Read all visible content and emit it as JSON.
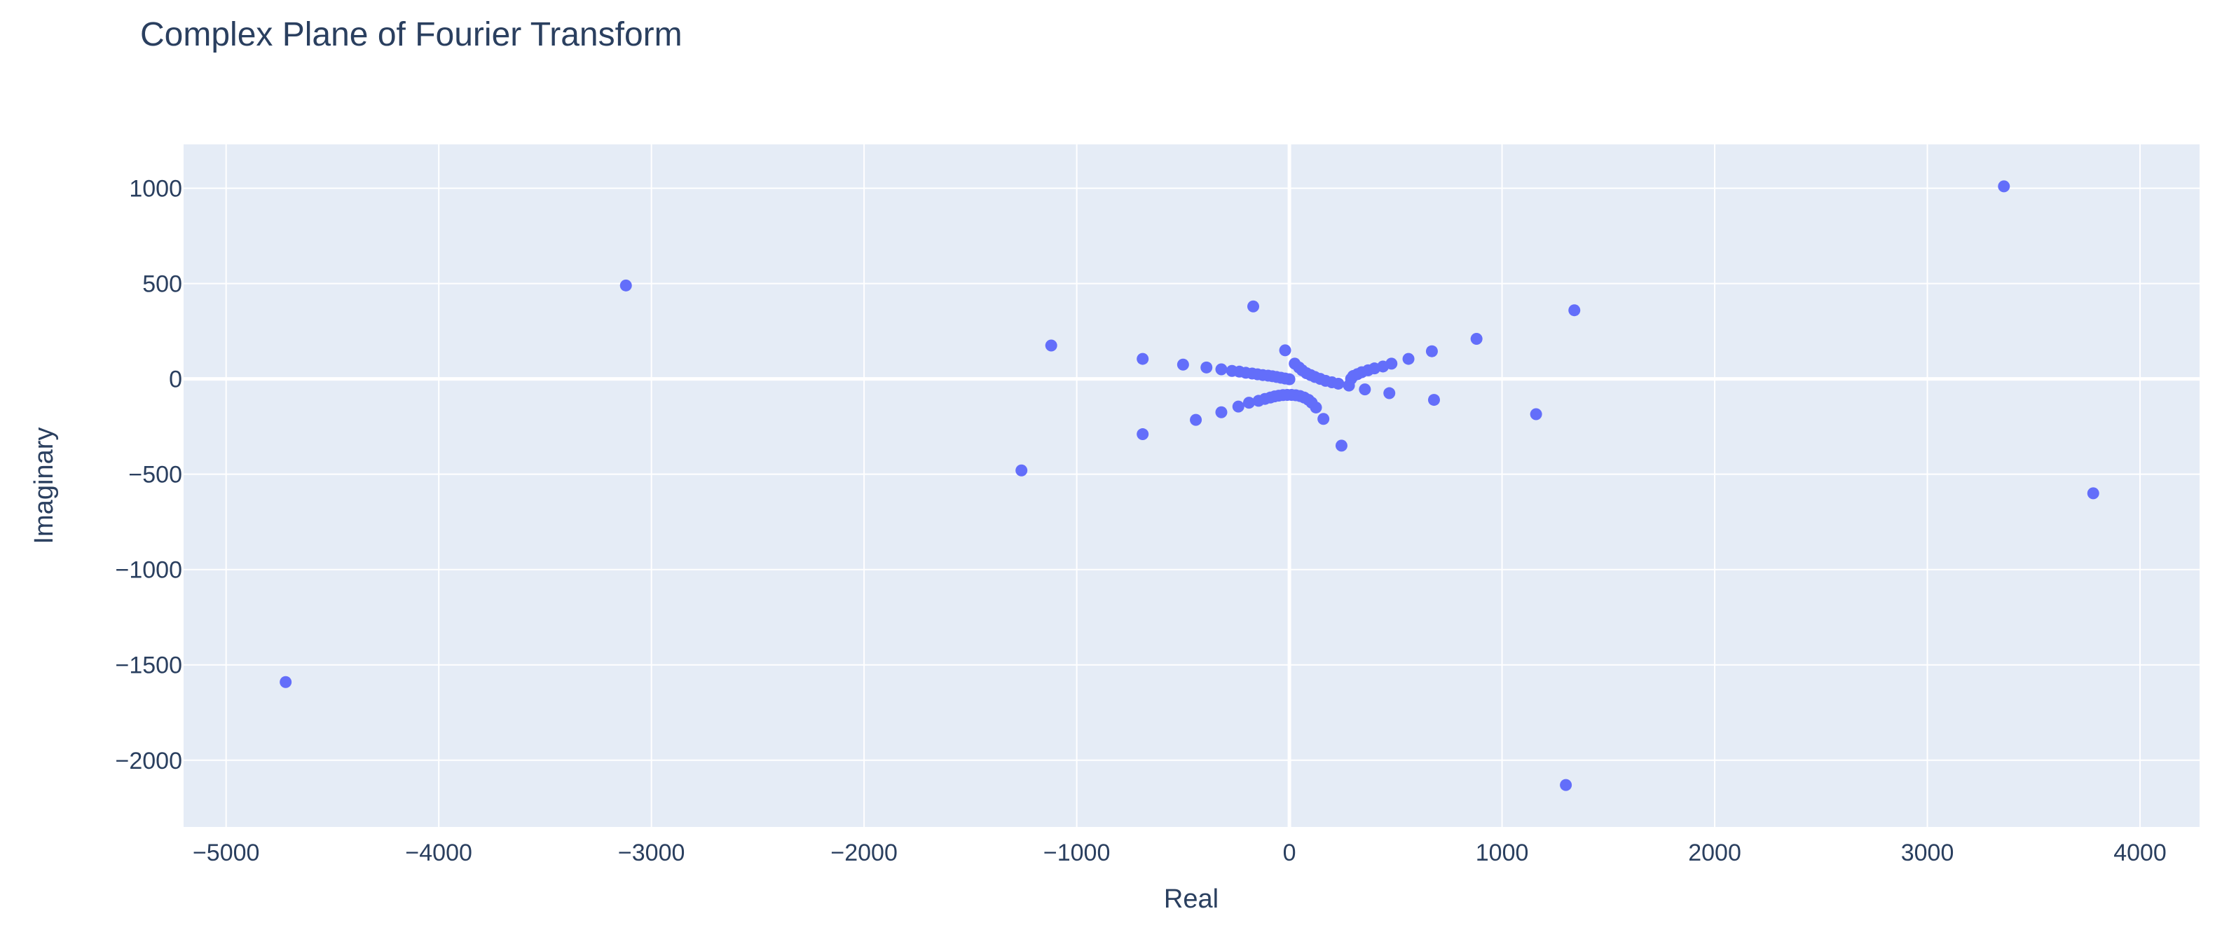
{
  "chart_data": {
    "type": "scatter",
    "title": "Complex Plane of Fourier Transform",
    "xlabel": "Real",
    "ylabel": "Imaginary",
    "xlim": [
      -5200,
      4280
    ],
    "ylim": [
      -2350,
      1230
    ],
    "xticks": [
      -5000,
      -4000,
      -3000,
      -2000,
      -1000,
      0,
      1000,
      2000,
      3000,
      4000
    ],
    "yticks": [
      -2000,
      -1500,
      -1000,
      -500,
      0,
      500,
      1000
    ],
    "grid": true,
    "legend": "none",
    "colors": {
      "marker": "#636efa",
      "plot_bg": "#e5ecf6",
      "grid": "#ffffff",
      "text": "#2a3f5f"
    },
    "points": [
      {
        "x": -4720,
        "y": -1590
      },
      {
        "x": -3120,
        "y": 490
      },
      {
        "x": -1260,
        "y": -480
      },
      {
        "x": -1120,
        "y": 175
      },
      {
        "x": -690,
        "y": 105
      },
      {
        "x": -690,
        "y": -290
      },
      {
        "x": -500,
        "y": 75
      },
      {
        "x": -440,
        "y": -215
      },
      {
        "x": -390,
        "y": 60
      },
      {
        "x": -320,
        "y": -175
      },
      {
        "x": -320,
        "y": 50
      },
      {
        "x": -270,
        "y": 42
      },
      {
        "x": -240,
        "y": -145
      },
      {
        "x": -235,
        "y": 38
      },
      {
        "x": -205,
        "y": 32
      },
      {
        "x": -190,
        "y": -125
      },
      {
        "x": -175,
        "y": 28
      },
      {
        "x": -170,
        "y": 380
      },
      {
        "x": -150,
        "y": 24
      },
      {
        "x": -145,
        "y": -115
      },
      {
        "x": -125,
        "y": 20
      },
      {
        "x": -115,
        "y": -105
      },
      {
        "x": -100,
        "y": 17
      },
      {
        "x": -90,
        "y": -98
      },
      {
        "x": -80,
        "y": 14
      },
      {
        "x": -70,
        "y": -92
      },
      {
        "x": -60,
        "y": 10
      },
      {
        "x": -50,
        "y": -88
      },
      {
        "x": -40,
        "y": 6
      },
      {
        "x": -30,
        "y": -85
      },
      {
        "x": -20,
        "y": 2
      },
      {
        "x": -20,
        "y": 150
      },
      {
        "x": -10,
        "y": -84
      },
      {
        "x": 0,
        "y": -2
      },
      {
        "x": 10,
        "y": -84
      },
      {
        "x": 25,
        "y": 80
      },
      {
        "x": 30,
        "y": -86
      },
      {
        "x": 45,
        "y": 60
      },
      {
        "x": 50,
        "y": -90
      },
      {
        "x": 60,
        "y": 45
      },
      {
        "x": 70,
        "y": -98
      },
      {
        "x": 80,
        "y": 30
      },
      {
        "x": 90,
        "y": -110
      },
      {
        "x": 100,
        "y": 20
      },
      {
        "x": 105,
        "y": -125
      },
      {
        "x": 120,
        "y": 10
      },
      {
        "x": 125,
        "y": -150
      },
      {
        "x": 145,
        "y": 0
      },
      {
        "x": 160,
        "y": -210
      },
      {
        "x": 170,
        "y": -10
      },
      {
        "x": 200,
        "y": -18
      },
      {
        "x": 230,
        "y": -25
      },
      {
        "x": 245,
        "y": -350
      },
      {
        "x": 280,
        "y": -35
      },
      {
        "x": 290,
        "y": 0
      },
      {
        "x": 300,
        "y": 15
      },
      {
        "x": 320,
        "y": 25
      },
      {
        "x": 340,
        "y": 35
      },
      {
        "x": 355,
        "y": -55
      },
      {
        "x": 370,
        "y": 45
      },
      {
        "x": 400,
        "y": 55
      },
      {
        "x": 440,
        "y": 65
      },
      {
        "x": 470,
        "y": -75
      },
      {
        "x": 480,
        "y": 80
      },
      {
        "x": 560,
        "y": 105
      },
      {
        "x": 670,
        "y": 145
      },
      {
        "x": 680,
        "y": -110
      },
      {
        "x": 880,
        "y": 210
      },
      {
        "x": 1160,
        "y": -185
      },
      {
        "x": 1300,
        "y": -2130
      },
      {
        "x": 1340,
        "y": 360
      },
      {
        "x": 3360,
        "y": 1010
      },
      {
        "x": 3780,
        "y": -600
      }
    ]
  }
}
